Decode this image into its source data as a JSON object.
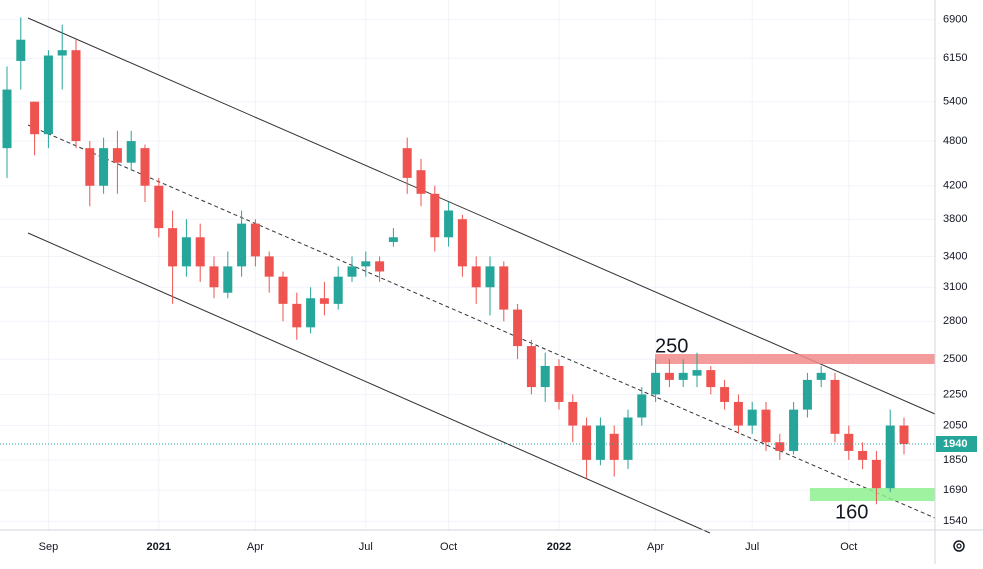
{
  "chart_data": {
    "type": "candlestick",
    "categories": [
      null,
      null,
      null,
      "Sep",
      null,
      null,
      null,
      null,
      null,
      null,
      null,
      "2021",
      null,
      null,
      null,
      null,
      null,
      null,
      "Apr",
      null,
      null,
      null,
      null,
      null,
      null,
      null,
      "Jul",
      null,
      null,
      null,
      null,
      null,
      "Oct",
      null,
      null,
      null,
      null,
      null,
      null,
      null,
      "2022",
      null,
      null,
      null,
      null,
      null,
      null,
      "Apr",
      null,
      null,
      null,
      null,
      null,
      null,
      "Jul",
      null,
      null,
      null,
      null,
      null,
      null,
      "Oct",
      null,
      null,
      null,
      null
    ],
    "open": [
      4700,
      6100,
      5400,
      4900,
      6200,
      6300,
      4700,
      4200,
      4700,
      4500,
      4700,
      4200,
      3700,
      3300,
      3600,
      3300,
      3050,
      3300,
      3750,
      3400,
      3200,
      2950,
      2750,
      3000,
      2950,
      3200,
      3300,
      3350,
      3550,
      4700,
      4400,
      4100,
      3600,
      3800,
      3300,
      3100,
      3300,
      2900,
      2600,
      2300,
      2450,
      2200,
      2050,
      1850,
      2000,
      1850,
      2100,
      2250,
      2400,
      2350,
      2380,
      2420,
      2300,
      2200,
      2050,
      2150,
      1950,
      1900,
      2150,
      2350,
      2350,
      2000,
      1900,
      1850,
      1700,
      2050
    ],
    "high": [
      6000,
      6950,
      5400,
      6300,
      6800,
      6500,
      4800,
      4850,
      4950,
      4950,
      4750,
      4300,
      3900,
      3800,
      3750,
      3400,
      3450,
      3900,
      3800,
      3450,
      3250,
      3050,
      3100,
      3150,
      3300,
      3400,
      3450,
      3400,
      3700,
      4850,
      4550,
      4200,
      4000,
      3850,
      3400,
      3400,
      3350,
      2950,
      2650,
      2550,
      2500,
      2250,
      2100,
      2100,
      2050,
      2150,
      2300,
      2500,
      2500,
      2500,
      2550,
      2450,
      2350,
      2250,
      2200,
      2200,
      2000,
      2200,
      2400,
      2450,
      2400,
      2050,
      1950,
      1900,
      2150,
      2100
    ],
    "low": [
      4300,
      5600,
      4600,
      4700,
      5600,
      4700,
      3950,
      4100,
      4100,
      4400,
      4000,
      3600,
      2950,
      3200,
      3150,
      3000,
      3000,
      3200,
      3300,
      3050,
      2800,
      2650,
      2700,
      2850,
      2900,
      3150,
      3200,
      3150,
      3500,
      4100,
      3950,
      3450,
      3500,
      3200,
      2950,
      2850,
      2800,
      2500,
      2250,
      2200,
      2150,
      1950,
      1750,
      1820,
      1760,
      1800,
      2050,
      2200,
      2300,
      2300,
      2300,
      2250,
      2150,
      2000,
      2000,
      1900,
      1850,
      1880,
      2100,
      2300,
      1950,
      1850,
      1800,
      1620,
      1680,
      1880
    ],
    "close": [
      5600,
      6500,
      4900,
      6200,
      6300,
      4800,
      4200,
      4700,
      4500,
      4800,
      4200,
      3700,
      3300,
      3600,
      3300,
      3100,
      3300,
      3750,
      3400,
      3200,
      2950,
      2750,
      3000,
      2950,
      3200,
      3300,
      3350,
      3250,
      3600,
      4300,
      4100,
      3600,
      3900,
      3300,
      3100,
      3300,
      2900,
      2600,
      2300,
      2450,
      2200,
      2050,
      1850,
      2050,
      1850,
      2100,
      2250,
      2400,
      2350,
      2400,
      2420,
      2300,
      2200,
      2050,
      2150,
      1950,
      1900,
      2150,
      2350,
      2400,
      2000,
      1900,
      1850,
      1700,
      2050,
      1940
    ],
    "up_color": "#26a69a",
    "down_color": "#ef5350",
    "log_scale": true,
    "grid": true,
    "ylim": [
      1500,
      7320
    ],
    "yticks": [
      1540,
      1690,
      1850,
      2050,
      2250,
      2500,
      2800,
      3100,
      3400,
      3800,
      4200,
      4800,
      5400,
      6150,
      6900
    ],
    "last_price": 1940,
    "annotations": [
      "250",
      "160"
    ]
  }
}
